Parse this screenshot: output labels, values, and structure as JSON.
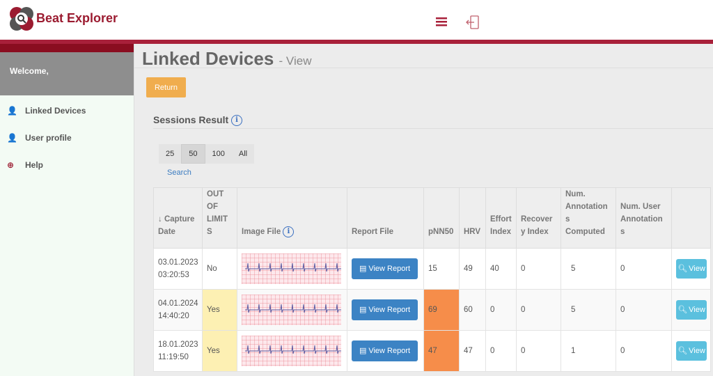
{
  "header": {
    "brand": "Beat Explorer",
    "brand_color": "#9b1b30"
  },
  "sidebar": {
    "welcome": "Welcome,",
    "items": [
      {
        "label": "Linked Devices",
        "icon": "user-plus-icon"
      },
      {
        "label": "User profile",
        "icon": "user-icon"
      },
      {
        "label": "Help",
        "icon": "life-ring-icon"
      }
    ]
  },
  "main": {
    "title": "Linked Devices",
    "subtitle": "- View",
    "return_label": "Return",
    "section_title": "Sessions Result",
    "page_sizes": [
      "25",
      "50",
      "100",
      "All"
    ],
    "active_page_size": "50",
    "search_label": "Search",
    "columns": [
      "↓ Capture Date",
      "OUT OF LIMITS",
      "Image File",
      "Report File",
      "pNN50",
      "HRV",
      "Effort Index",
      "Recovery Index",
      "Num. Annotations Computed",
      "Num. User Annotations",
      ""
    ],
    "view_report_label": "View Report",
    "view_label": "View",
    "rows": [
      {
        "date": "03.01.2023",
        "time": "03:20:53",
        "out": "No",
        "pnn50": "15",
        "hrv": "49",
        "effort": "40",
        "recovery": "0",
        "ann": "5",
        "user_ann": "0",
        "out_flag": false,
        "pnn_flag": false
      },
      {
        "date": "04.01.2024",
        "time": "14:40:20",
        "out": "Yes",
        "pnn50": "69",
        "hrv": "60",
        "effort": "0",
        "recovery": "0",
        "ann": "5",
        "user_ann": "0",
        "out_flag": true,
        "pnn_flag": true
      },
      {
        "date": "18.01.2023",
        "time": "11:19:50",
        "out": "Yes",
        "pnn50": "47",
        "hrv": "47",
        "effort": "0",
        "recovery": "0",
        "ann": "1",
        "user_ann": "0",
        "out_flag": true,
        "pnn_flag": true
      }
    ]
  }
}
